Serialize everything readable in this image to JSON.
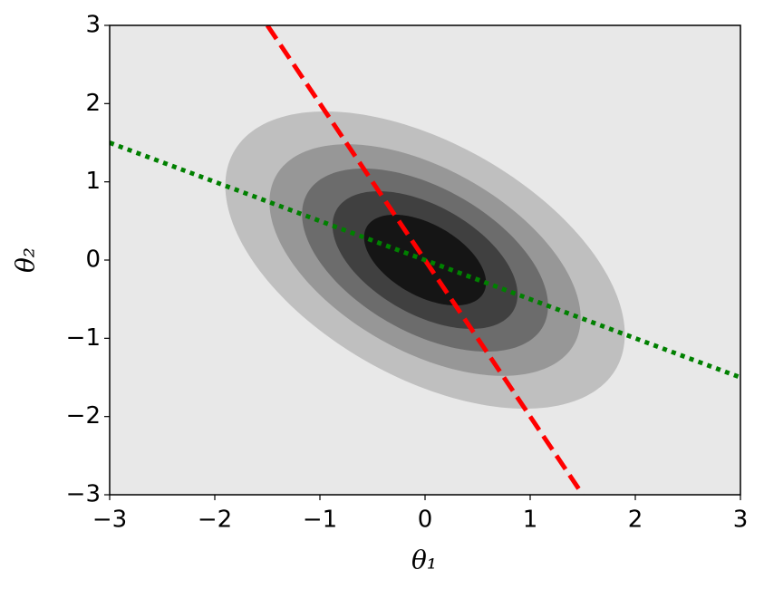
{
  "chart_data": {
    "type": "contour",
    "xlabel": "θ₁",
    "ylabel": "θ₂",
    "xlim": [
      -3,
      3
    ],
    "ylim": [
      -3,
      3
    ],
    "xticks": [
      {
        "value": -3,
        "label": "−3"
      },
      {
        "value": -2,
        "label": "−2"
      },
      {
        "value": -1,
        "label": "−1"
      },
      0,
      1,
      2,
      3
    ],
    "yticks": [
      {
        "value": -3,
        "label": "−3"
      },
      {
        "value": -2,
        "label": "−2"
      },
      {
        "value": -1,
        "label": "−1"
      },
      0,
      1,
      2,
      3
    ],
    "background": "#e8e8e8",
    "mean": [
      0,
      0
    ],
    "covariance": [
      [
        1,
        -0.5
      ],
      [
        -0.5,
        1
      ]
    ],
    "levels": [
      1.9,
      1.48,
      1.17,
      0.88,
      0.58
    ],
    "level_colors": [
      "#bfbfbf",
      "#979797",
      "#6c6c6c",
      "#404040",
      "#151515"
    ],
    "series": [
      {
        "color": "#ff0000",
        "style": "dashed",
        "x": [
          -1.5,
          1.5
        ],
        "y": [
          3,
          -3
        ]
      },
      {
        "color": "#008000",
        "style": "dotted",
        "x": [
          -3,
          3
        ],
        "y": [
          1.5,
          -1.5
        ]
      }
    ]
  }
}
